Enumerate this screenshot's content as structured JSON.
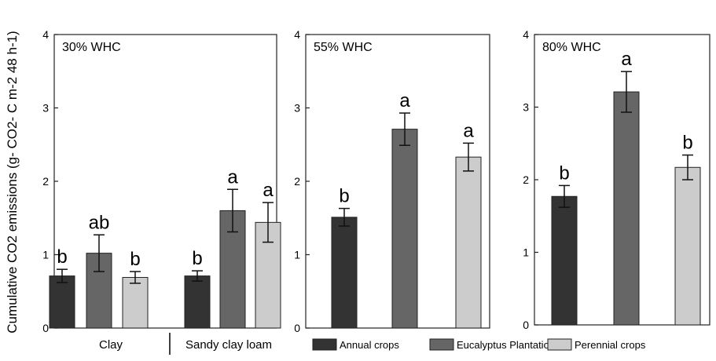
{
  "chart_data": [
    {
      "type": "bar",
      "title": "30% WHC",
      "ylabel": "Cumulative CO2 emissions (g- CO2- C m-2 48 h-1)",
      "ylim": [
        0,
        4
      ],
      "yticks": [
        "0",
        "1",
        "2",
        "3",
        "4"
      ],
      "categories": [
        "Clay",
        "Sandy clay loam"
      ],
      "series": [
        {
          "name": "Annual crops",
          "color": "#333333",
          "values": [
            0.71,
            0.71
          ],
          "errors": [
            0.09,
            0.07
          ],
          "labels": [
            "b",
            "b"
          ]
        },
        {
          "name": "Eucalyptus Plantation",
          "color": "#666666",
          "values": [
            1.02,
            1.6
          ],
          "errors": [
            0.25,
            0.29
          ],
          "labels": [
            "ab",
            "a"
          ]
        },
        {
          "name": "Perennial crops",
          "color": "#cccccc",
          "values": [
            0.69,
            1.44
          ],
          "errors": [
            0.08,
            0.27
          ],
          "labels": [
            "b",
            "a"
          ]
        }
      ]
    },
    {
      "type": "bar",
      "title": "55% WHC",
      "ylim": [
        0,
        4
      ],
      "yticks": [
        "0",
        "1",
        "2",
        "3",
        "4"
      ],
      "series": [
        {
          "name": "Annual crops",
          "color": "#333333",
          "values": [
            1.51
          ],
          "errors": [
            0.12
          ],
          "labels": [
            "b"
          ]
        },
        {
          "name": "Eucalyptus Plantation",
          "color": "#666666",
          "values": [
            2.71
          ],
          "errors": [
            0.22
          ],
          "labels": [
            "a"
          ]
        },
        {
          "name": "Perennial crops",
          "color": "#cccccc",
          "values": [
            2.33
          ],
          "errors": [
            0.19
          ],
          "labels": [
            "a"
          ]
        }
      ]
    },
    {
      "type": "bar",
      "title": "80% WHC",
      "ylim": [
        0,
        4
      ],
      "yticks": [
        "0",
        "1",
        "2",
        "3",
        "4"
      ],
      "series": [
        {
          "name": "Annual crops",
          "color": "#333333",
          "values": [
            1.77
          ],
          "errors": [
            0.15
          ],
          "labels": [
            "b"
          ]
        },
        {
          "name": "Eucalyptus Plantation",
          "color": "#666666",
          "values": [
            3.21
          ],
          "errors": [
            0.28
          ],
          "labels": [
            "a"
          ]
        },
        {
          "name": "Perennial crops",
          "color": "#cccccc",
          "values": [
            2.17
          ],
          "errors": [
            0.17
          ],
          "labels": [
            "b"
          ]
        }
      ]
    }
  ],
  "legend": [
    {
      "label": "Annual crops",
      "color": "#333333"
    },
    {
      "label": "Eucalyptus Plantation",
      "color": "#666666"
    },
    {
      "label": "Perennial crops",
      "color": "#cccccc"
    }
  ]
}
